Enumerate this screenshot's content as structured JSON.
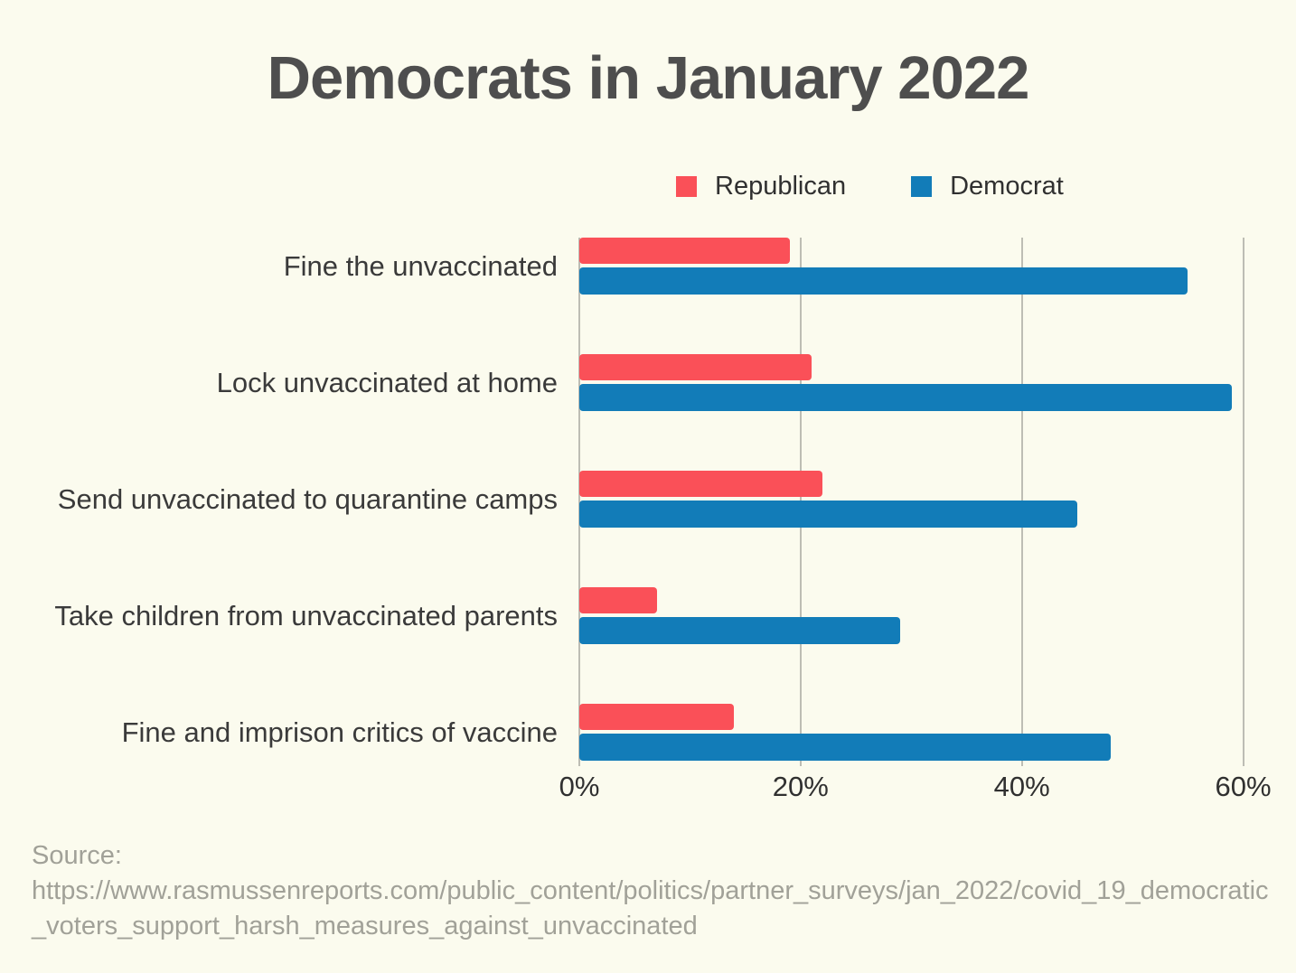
{
  "title": "Democrats in January 2022",
  "colors": {
    "background": "#fbfbee",
    "title_text": "#4e4e4e",
    "grid": "#bdbdb4",
    "republican": "#fa5058",
    "democrat": "#127cb8",
    "source_text": "#a1a198"
  },
  "source": {
    "label": "Source:",
    "url": "https://www.rasmussenreports.com/public_content/politics/partner_surveys/jan_2022/covid_19_democratic_voters_support_harsh_measures_against_unvaccinated"
  },
  "chart_data": {
    "type": "bar",
    "orientation": "horizontal",
    "title": "Democrats in January 2022",
    "categories": [
      "Fine the unvaccinated",
      "Lock unvaccinated at home",
      "Send unvaccinated to quarantine camps",
      "Take children from unvaccinated parents",
      "Fine and imprison critics of vaccine"
    ],
    "series": [
      {
        "name": "Republican",
        "color": "#fa5058",
        "values": [
          19,
          21,
          22,
          7,
          14
        ]
      },
      {
        "name": "Democrat",
        "color": "#127cb8",
        "values": [
          55,
          59,
          45,
          29,
          48
        ]
      }
    ],
    "x_ticks": [
      "0%",
      "20%",
      "40%",
      "60%"
    ],
    "x_tick_values": [
      0,
      20,
      40,
      60
    ],
    "xlim": [
      0,
      62
    ],
    "grid": true,
    "legend_position": "top-right",
    "value_unit": "percent"
  }
}
